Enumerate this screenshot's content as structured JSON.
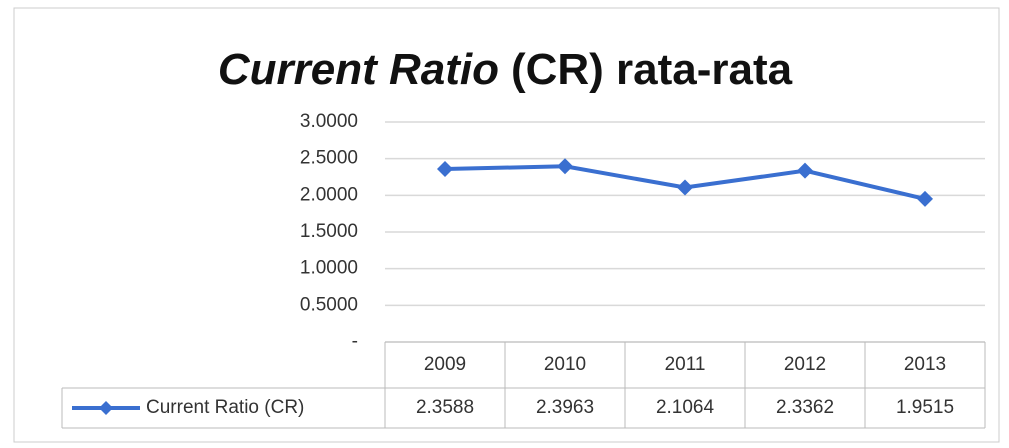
{
  "chart_data": {
    "type": "line",
    "title": [
      "Current Ratio",
      "(CR) rata-rata"
    ],
    "categories": [
      "2009",
      "2010",
      "2011",
      "2012",
      "2013"
    ],
    "series": [
      {
        "name": "Current Ratio (CR)",
        "color": "#3a6fd0",
        "values": [
          2.3588,
          2.3963,
          2.1064,
          2.3362,
          1.9515
        ]
      }
    ],
    "ylim": [
      0,
      3
    ],
    "yticks": [
      {
        "value": 0,
        "label": "-"
      },
      {
        "value": 0.5,
        "label": "0.5000"
      },
      {
        "value": 1,
        "label": "1.0000"
      },
      {
        "value": 1.5,
        "label": "1.5000"
      },
      {
        "value": 2,
        "label": "2.0000"
      },
      {
        "value": 2.5,
        "label": "2.5000"
      },
      {
        "value": 3,
        "label": "3.0000"
      }
    ],
    "grid": true
  }
}
